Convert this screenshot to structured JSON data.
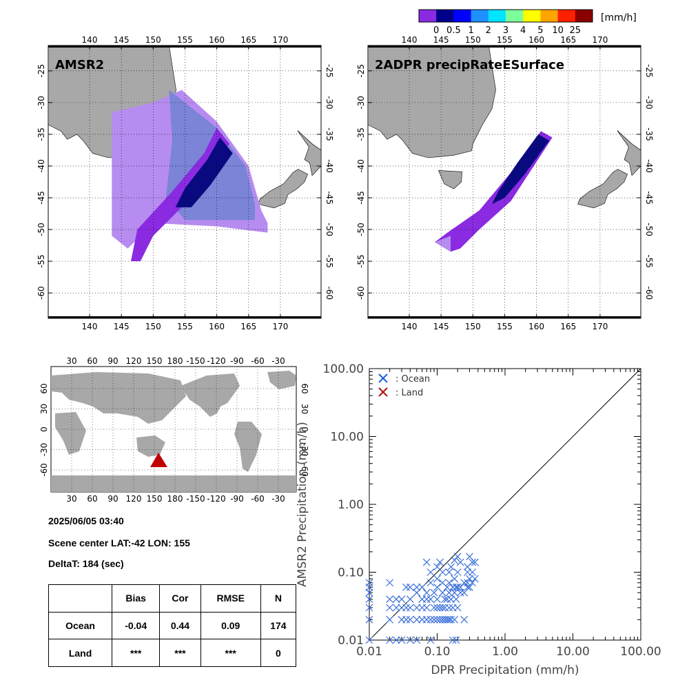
{
  "colorbar": {
    "unit": "[mm/h]",
    "ticks": [
      "0",
      "0.5",
      "1",
      "2",
      "3",
      "4",
      "5",
      "10",
      "25"
    ],
    "colors": [
      "#8a2be2",
      "#00008b",
      "#0000ff",
      "#1e90ff",
      "#00e5ff",
      "#7cfc9a",
      "#ffff00",
      "#ffa500",
      "#ff2000",
      "#8b0000"
    ]
  },
  "maps": {
    "lon_ticks": [
      "140",
      "145",
      "150",
      "155",
      "160",
      "165",
      "170"
    ],
    "lat_ticks": [
      "-25",
      "-30",
      "-35",
      "-40",
      "-45",
      "-50",
      "-55",
      "-60"
    ],
    "left_title": "AMSR2",
    "right_title": "2ADPR precipRateESurface",
    "land_color": "#a8a8a8",
    "light_precip_color": "#b68cf0",
    "moderate_color": "#8a2be2",
    "heavy_color": "#0a0a80",
    "blue_region_color": "#7b84d6"
  },
  "globe": {
    "top_ticks": [
      "30",
      "60",
      "90",
      "120",
      "150",
      "180",
      "-150",
      "-120",
      "-90",
      "-60",
      "-30"
    ],
    "lat_ticks": [
      "60",
      "30",
      "0",
      "-30",
      "-60"
    ],
    "marker_color": "#c00000"
  },
  "info": {
    "datetime": "2025/06/05 03:40",
    "scene_center": "Scene center LAT:-42   LON: 155",
    "delta_t": "DeltaT:  184 (sec)"
  },
  "stats_table": {
    "headers": [
      "",
      "Bias",
      "Cor",
      "RMSE",
      "N"
    ],
    "rows": [
      [
        "Ocean",
        "-0.04",
        "0.44",
        "0.09",
        "174"
      ],
      [
        "Land",
        "***",
        "***",
        "***",
        "0"
      ]
    ]
  },
  "chart_data": {
    "type": "scatter",
    "xlabel": "DPR Precipitation (mm/h)",
    "ylabel": "AMSR2 Precipitation (mm/h)",
    "xscale": "log",
    "yscale": "log",
    "xlim": [
      0.01,
      100
    ],
    "ylim": [
      0.01,
      100
    ],
    "x_tick_labels": [
      "0.01",
      "0.10",
      "1.00",
      "10.00",
      "100.00"
    ],
    "y_tick_labels": [
      "0.01",
      "0.10",
      "1.00",
      "10.00",
      "100.00"
    ],
    "legend": [
      {
        "label": ": Ocean",
        "color": "#1f5fd6"
      },
      {
        "label": ": Land",
        "color": "#b01010"
      }
    ],
    "legend_position": "top-left",
    "reference_line": "1:1",
    "series": [
      {
        "name": "Ocean",
        "color": "#3a6fd8",
        "points": [
          [
            0.01,
            0.07
          ],
          [
            0.01,
            0.06
          ],
          [
            0.01,
            0.05
          ],
          [
            0.01,
            0.04
          ],
          [
            0.01,
            0.03
          ],
          [
            0.01,
            0.02
          ],
          [
            0.01,
            0.01
          ],
          [
            0.02,
            0.07
          ],
          [
            0.02,
            0.04
          ],
          [
            0.02,
            0.03
          ],
          [
            0.02,
            0.02
          ],
          [
            0.02,
            0.01
          ],
          [
            0.025,
            0.04
          ],
          [
            0.025,
            0.03
          ],
          [
            0.025,
            0.01
          ],
          [
            0.03,
            0.04
          ],
          [
            0.03,
            0.03
          ],
          [
            0.03,
            0.02
          ],
          [
            0.03,
            0.01
          ],
          [
            0.035,
            0.06
          ],
          [
            0.035,
            0.03
          ],
          [
            0.035,
            0.02
          ],
          [
            0.04,
            0.06
          ],
          [
            0.04,
            0.04
          ],
          [
            0.04,
            0.03
          ],
          [
            0.04,
            0.02
          ],
          [
            0.04,
            0.01
          ],
          [
            0.05,
            0.06
          ],
          [
            0.05,
            0.05
          ],
          [
            0.05,
            0.03
          ],
          [
            0.05,
            0.02
          ],
          [
            0.05,
            0.01
          ],
          [
            0.06,
            0.06
          ],
          [
            0.06,
            0.04
          ],
          [
            0.06,
            0.03
          ],
          [
            0.06,
            0.02
          ],
          [
            0.07,
            0.14
          ],
          [
            0.07,
            0.05
          ],
          [
            0.07,
            0.04
          ],
          [
            0.07,
            0.03
          ],
          [
            0.07,
            0.02
          ],
          [
            0.08,
            0.1
          ],
          [
            0.08,
            0.07
          ],
          [
            0.08,
            0.04
          ],
          [
            0.08,
            0.02
          ],
          [
            0.08,
            0.01
          ],
          [
            0.09,
            0.05
          ],
          [
            0.09,
            0.03
          ],
          [
            0.09,
            0.02
          ],
          [
            0.1,
            0.12
          ],
          [
            0.1,
            0.08
          ],
          [
            0.1,
            0.06
          ],
          [
            0.1,
            0.04
          ],
          [
            0.1,
            0.03
          ],
          [
            0.1,
            0.02
          ],
          [
            0.11,
            0.14
          ],
          [
            0.11,
            0.03
          ],
          [
            0.11,
            0.02
          ],
          [
            0.12,
            0.1
          ],
          [
            0.12,
            0.07
          ],
          [
            0.12,
            0.05
          ],
          [
            0.12,
            0.03
          ],
          [
            0.12,
            0.02
          ],
          [
            0.13,
            0.04
          ],
          [
            0.13,
            0.03
          ],
          [
            0.13,
            0.02
          ],
          [
            0.14,
            0.06
          ],
          [
            0.14,
            0.04
          ],
          [
            0.14,
            0.02
          ],
          [
            0.15,
            0.1
          ],
          [
            0.15,
            0.07
          ],
          [
            0.15,
            0.05
          ],
          [
            0.15,
            0.03
          ],
          [
            0.15,
            0.02
          ],
          [
            0.16,
            0.12
          ],
          [
            0.16,
            0.04
          ],
          [
            0.16,
            0.02
          ],
          [
            0.17,
            0.06
          ],
          [
            0.17,
            0.03
          ],
          [
            0.17,
            0.01
          ],
          [
            0.18,
            0.15
          ],
          [
            0.18,
            0.08
          ],
          [
            0.18,
            0.05
          ],
          [
            0.18,
            0.02
          ],
          [
            0.19,
            0.06
          ],
          [
            0.19,
            0.04
          ],
          [
            0.19,
            0.01
          ],
          [
            0.2,
            0.17
          ],
          [
            0.2,
            0.1
          ],
          [
            0.2,
            0.06
          ],
          [
            0.2,
            0.03
          ],
          [
            0.22,
            0.14
          ],
          [
            0.22,
            0.06
          ],
          [
            0.22,
            0.05
          ],
          [
            0.25,
            0.07
          ],
          [
            0.25,
            0.05
          ],
          [
            0.25,
            0.02
          ],
          [
            0.28,
            0.12
          ],
          [
            0.28,
            0.1
          ],
          [
            0.28,
            0.07
          ],
          [
            0.28,
            0.06
          ],
          [
            0.3,
            0.17
          ],
          [
            0.3,
            0.08
          ],
          [
            0.3,
            0.06
          ],
          [
            0.33,
            0.14
          ],
          [
            0.33,
            0.1
          ],
          [
            0.33,
            0.07
          ],
          [
            0.36,
            0.14
          ],
          [
            0.36,
            0.08
          ]
        ]
      }
    ]
  }
}
